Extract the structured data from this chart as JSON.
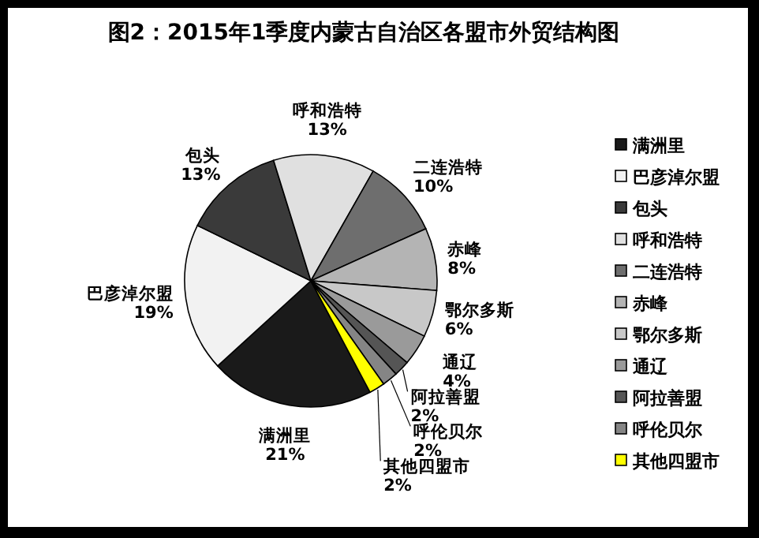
{
  "chart_data": {
    "type": "pie",
    "title": "图2：2015年1季度内蒙古自治区各盟市外贸结构图",
    "categories": [
      "满洲里",
      "巴彦淖尔盟",
      "包头",
      "呼和浩特",
      "二连浩特",
      "赤峰",
      "鄂尔多斯",
      "通辽",
      "阿拉善盟",
      "呼伦贝尔",
      "其他四盟市"
    ],
    "values": [
      21,
      19,
      13,
      13,
      10,
      8,
      6,
      4,
      2,
      2,
      2
    ],
    "colors": [
      "#1a1a1a",
      "#f2f2f2",
      "#3a3a3a",
      "#e0e0e0",
      "#6e6e6e",
      "#b4b4b4",
      "#c8c8c8",
      "#9a9a9a",
      "#555555",
      "#858585",
      "#ffff00"
    ],
    "value_labels": [
      "21%",
      "19%",
      "13%",
      "13%",
      "10%",
      "8%",
      "6%",
      "4%",
      "2%",
      "2%",
      "2%"
    ],
    "legend": "right"
  }
}
